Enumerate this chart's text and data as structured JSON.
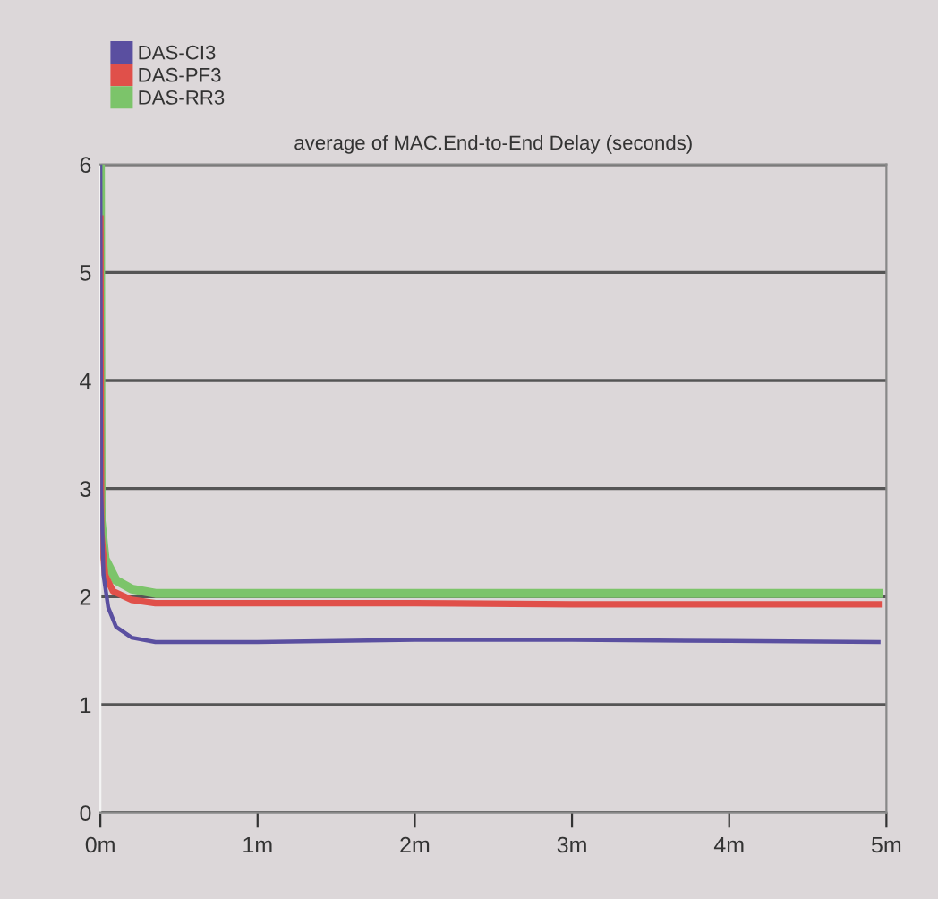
{
  "chart_data": {
    "type": "line",
    "title": "average of MAC.End-to-End Delay (seconds)",
    "xlim": [
      0,
      5
    ],
    "xticks": [
      {
        "value": 0,
        "label": "0m"
      },
      {
        "value": 1,
        "label": "1m"
      },
      {
        "value": 2,
        "label": "2m"
      },
      {
        "value": 3,
        "label": "3m"
      },
      {
        "value": 4,
        "label": "4m"
      },
      {
        "value": 5,
        "label": "5m"
      }
    ],
    "ylim": [
      0,
      6
    ],
    "yticks": [
      0,
      1,
      2,
      3,
      4,
      5,
      6
    ],
    "grid": "y",
    "legend": "top left",
    "marker": "none",
    "line_style": "solid",
    "series": [
      {
        "name": "DAS-CI3",
        "color": "#5a4fa0",
        "x": [
          0,
          0.005,
          0.02,
          0.05,
          0.1,
          0.2,
          0.35,
          1,
          2,
          3,
          4,
          4.95
        ],
        "values": [
          6,
          3.0,
          2.2,
          1.9,
          1.72,
          1.62,
          1.58,
          1.58,
          1.6,
          1.6,
          1.59,
          1.58
        ]
      },
      {
        "name": "DAS-PF3",
        "color": "#e0504a",
        "x": [
          0,
          0.005,
          0.03,
          0.08,
          0.2,
          0.35,
          1,
          2,
          3,
          4,
          4.95
        ],
        "values": [
          5.5,
          2.6,
          2.2,
          2.05,
          1.97,
          1.94,
          1.94,
          1.94,
          1.93,
          1.93,
          1.93
        ]
      },
      {
        "name": "DAS-RR3",
        "color": "#7cc46a",
        "x": [
          0,
          0.005,
          0.03,
          0.1,
          0.2,
          0.35,
          1,
          2,
          3,
          4,
          4.95
        ],
        "values": [
          6,
          2.7,
          2.35,
          2.15,
          2.07,
          2.03,
          2.03,
          2.03,
          2.03,
          2.03,
          2.03
        ]
      }
    ]
  }
}
